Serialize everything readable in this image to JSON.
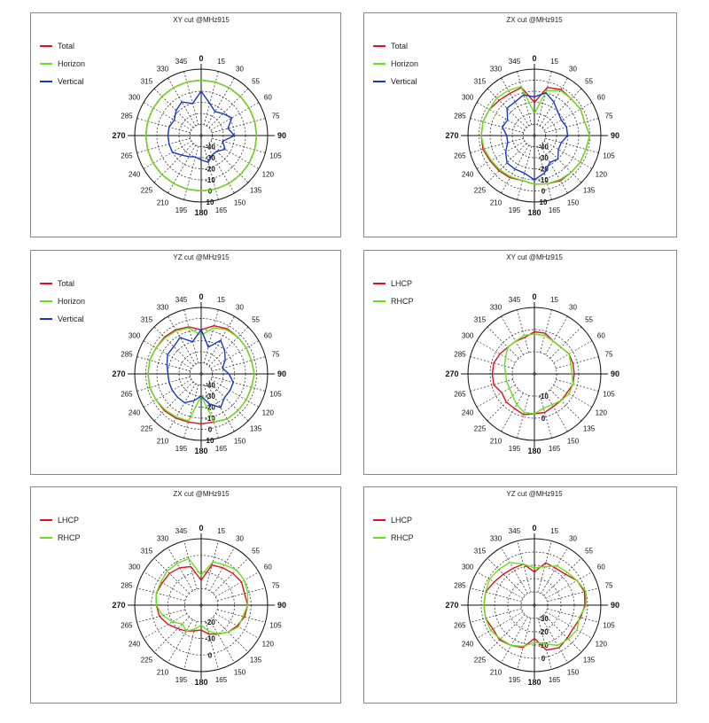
{
  "colors": {
    "red": "#e01020",
    "green": "#66e21a",
    "blue": "#1438c8"
  },
  "chart_data": [
    {
      "type": "polar-line",
      "title": "XY cut @MHz915",
      "angle_ticks": [
        "0",
        "15",
        "30",
        "55",
        "60",
        "75",
        "90",
        "105",
        "120",
        "135",
        "150",
        "165",
        "180",
        "195",
        "210",
        "225",
        "240",
        "265",
        "270",
        "285",
        "300",
        "315",
        "330",
        "345"
      ],
      "radial_labels": [
        "-40",
        "-30",
        "-20",
        "-10",
        "0",
        "10"
      ],
      "rlim": [
        -50,
        10
      ],
      "legend": "top-left",
      "series": [
        {
          "name": "Total",
          "color": "red",
          "values": [
            0,
            0,
            0,
            0,
            0,
            0,
            0,
            0,
            0,
            0,
            0,
            0,
            0,
            0,
            0,
            0,
            0,
            0,
            0,
            0,
            0,
            0,
            0,
            0
          ]
        },
        {
          "name": "Horizon",
          "color": "green",
          "values": [
            0,
            0,
            0,
            0,
            0,
            0,
            0,
            0,
            0,
            0,
            0,
            0,
            0,
            0,
            0,
            0,
            0,
            0,
            0,
            0,
            0,
            0,
            0,
            0
          ]
        },
        {
          "name": "Vertical",
          "color": "blue",
          "values": [
            -10,
            -20,
            -25,
            -22,
            -18,
            -25,
            -20,
            -30,
            -25,
            -30,
            -30,
            -25,
            -28,
            -30,
            -28,
            -25,
            -20,
            -20,
            -20,
            -20,
            -22,
            -18,
            -15,
            -20
          ]
        }
      ]
    },
    {
      "type": "polar-line",
      "title": "ZX cut @MHz915",
      "angle_ticks": [
        "0",
        "15",
        "30",
        "55",
        "60",
        "75",
        "90",
        "105",
        "120",
        "135",
        "150",
        "165",
        "180",
        "195",
        "210",
        "225",
        "240",
        "265",
        "270",
        "285",
        "300",
        "315",
        "330",
        "345"
      ],
      "radial_labels": [
        "-40",
        "-30",
        "-20",
        "-10",
        "0",
        "10"
      ],
      "rlim": [
        -50,
        10
      ],
      "legend": "top-left",
      "series": [
        {
          "name": "Total",
          "color": "red",
          "values": [
            -20,
            -5,
            -2,
            -3,
            -2,
            -3,
            0,
            -2,
            -2,
            -3,
            -3,
            -5,
            -6,
            -8,
            -6,
            -5,
            -4,
            -2,
            -2,
            -2,
            -3,
            -5,
            -6,
            -5
          ]
        },
        {
          "name": "Horizon",
          "color": "green",
          "values": [
            -30,
            -8,
            -3,
            -3,
            -2,
            -3,
            0,
            -2,
            -2,
            -3,
            -4,
            -5,
            -6,
            -8,
            -7,
            -6,
            -5,
            -3,
            -2,
            -2,
            -3,
            -2,
            -3,
            -4
          ]
        },
        {
          "name": "Vertical",
          "color": "blue",
          "values": [
            -15,
            -10,
            -15,
            -20,
            -22,
            -20,
            -20,
            -25,
            -25,
            -20,
            -22,
            -15,
            -10,
            -15,
            -15,
            -15,
            -20,
            -25,
            -25,
            -20,
            -22,
            -15,
            -15,
            -12
          ]
        }
      ]
    },
    {
      "type": "polar-line",
      "title": "YZ cut @MHz915",
      "angle_ticks": [
        "0",
        "15",
        "30",
        "55",
        "60",
        "75",
        "90",
        "105",
        "120",
        "135",
        "150",
        "165",
        "180",
        "195",
        "210",
        "225",
        "240",
        "265",
        "270",
        "285",
        "300",
        "315",
        "330",
        "345"
      ],
      "radial_labels": [
        "-40",
        "-30",
        "-20",
        "-10",
        "0",
        "10"
      ],
      "rlim": [
        -50,
        10
      ],
      "legend": "top-left",
      "series": [
        {
          "name": "Total",
          "color": "red",
          "values": [
            -10,
            -5,
            -3,
            -3,
            -3,
            -3,
            -2,
            -3,
            -3,
            -3,
            -3,
            -5,
            -5,
            -5,
            -4,
            -3,
            -3,
            -2,
            -2,
            -2,
            -3,
            -3,
            -4,
            -6
          ]
        },
        {
          "name": "Horizon",
          "color": "green",
          "values": [
            -15,
            -7,
            -4,
            -3,
            -3,
            -3,
            -2,
            -3,
            -3,
            -3,
            -3,
            -5,
            -30,
            -6,
            -5,
            -4,
            -3,
            -2,
            -2,
            -2,
            -3,
            -4,
            -5,
            -7
          ]
        },
        {
          "name": "Vertical",
          "color": "blue",
          "values": [
            -10,
            -25,
            -15,
            -20,
            -25,
            -30,
            -25,
            -20,
            -20,
            -20,
            -15,
            -22,
            -30,
            -25,
            -20,
            -20,
            -20,
            -20,
            -20,
            -18,
            -15,
            -15,
            -12,
            -20
          ]
        }
      ]
    },
    {
      "type": "polar-line",
      "title": "XY cut @MHz915",
      "angle_ticks": [
        "0",
        "15",
        "30",
        "55",
        "60",
        "75",
        "90",
        "105",
        "120",
        "135",
        "150",
        "165",
        "180",
        "195",
        "210",
        "225",
        "240",
        "265",
        "270",
        "285",
        "300",
        "315",
        "330",
        "345"
      ],
      "radial_labels": [
        "-10",
        "0"
      ],
      "rlim": [
        -20,
        10
      ],
      "legend": "top-left",
      "series": [
        {
          "name": "LHCP",
          "color": "red",
          "values": [
            -1,
            -1,
            -3,
            -3,
            -2,
            -2,
            -2,
            -2,
            -3,
            -3,
            -3,
            -2,
            -2,
            -1,
            -2,
            -2,
            -3,
            -1,
            -1,
            -1,
            -2,
            -3,
            -3,
            -3
          ]
        },
        {
          "name": "RHCP",
          "color": "green",
          "values": [
            -2,
            -2,
            -3,
            -3,
            -2,
            -3,
            -3,
            -2,
            -2,
            -3,
            -4,
            -4,
            -2,
            -2,
            -4,
            -6,
            -7,
            -7,
            -7,
            -6,
            -5,
            -3,
            -3,
            -2
          ]
        }
      ]
    },
    {
      "type": "polar-line",
      "title": "ZX cut @MHz915",
      "angle_ticks": [
        "0",
        "15",
        "30",
        "55",
        "60",
        "75",
        "90",
        "105",
        "120",
        "135",
        "150",
        "165",
        "180",
        "195",
        "210",
        "225",
        "240",
        "265",
        "270",
        "285",
        "300",
        "315",
        "330",
        "345"
      ],
      "radial_labels": [
        "-20",
        "-10",
        "0"
      ],
      "rlim": [
        -30,
        10
      ],
      "legend": "top-left",
      "series": [
        {
          "name": "LHCP",
          "color": "red",
          "values": [
            -15,
            -5,
            -4,
            -3,
            -2,
            -3,
            -2,
            -3,
            -5,
            -7,
            -10,
            -12,
            -15,
            -14,
            -12,
            -10,
            -7,
            -4,
            -3,
            -2,
            -3,
            -3,
            -4,
            -6
          ]
        },
        {
          "name": "RHCP",
          "color": "green",
          "values": [
            -12,
            -3,
            -2,
            0,
            0,
            -1,
            -2,
            -4,
            -4,
            -7,
            -10,
            -14,
            -18,
            -15,
            -12,
            -14,
            -10,
            -6,
            -3,
            -2,
            -2,
            -1,
            -1,
            -1
          ]
        }
      ]
    },
    {
      "type": "polar-line",
      "title": "YZ cut @MHz915",
      "angle_ticks": [
        "0",
        "15",
        "30",
        "55",
        "60",
        "75",
        "90",
        "105",
        "120",
        "135",
        "150",
        "165",
        "180",
        "195",
        "210",
        "225",
        "240",
        "265",
        "270",
        "285",
        "300",
        "315",
        "330",
        "345"
      ],
      "radial_labels": [
        "-30",
        "-20",
        "-10",
        "0"
      ],
      "rlim": [
        -40,
        10
      ],
      "legend": "top-left",
      "series": [
        {
          "name": "LHCP",
          "color": "red",
          "values": [
            -15,
            -7,
            -8,
            -7,
            -3,
            -1,
            -2,
            -4,
            -6,
            -5,
            -3,
            -5,
            -15,
            -7,
            -5,
            -3,
            -4,
            -2,
            -2,
            -2,
            -5,
            -7,
            -8,
            -8
          ]
        },
        {
          "name": "RHCP",
          "color": "green",
          "values": [
            -12,
            -10,
            -6,
            -5,
            -3,
            0,
            -1,
            -5,
            -3,
            -4,
            -5,
            -10,
            -12,
            -8,
            -5,
            -4,
            -2,
            -2,
            -2,
            -2,
            -1,
            -2,
            -3,
            -8
          ]
        }
      ]
    }
  ]
}
